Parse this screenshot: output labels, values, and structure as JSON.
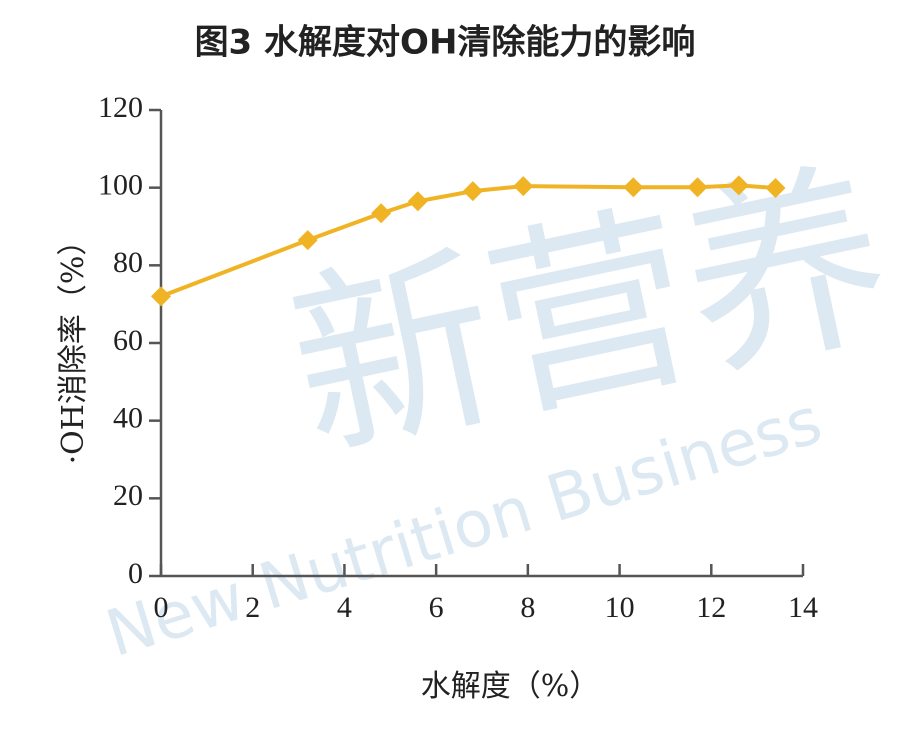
{
  "chart_data": {
    "type": "line",
    "title": "图3 水解度对OH清除能力的影响",
    "x_label": "水解度（%）",
    "y_label": "·OH消除率（%）",
    "watermark": [
      "新营养",
      "New Nutrition Business"
    ],
    "x": [
      0.0,
      3.2,
      4.8,
      5.6,
      6.8,
      7.9,
      10.3,
      11.7,
      12.6,
      13.4
    ],
    "series": [
      {
        "name": "·OH消除率",
        "color": "#f0b323",
        "values": [
          72,
          86.5,
          93.4,
          96.5,
          99.1,
          100.4,
          100.1,
          100.1,
          100.6,
          99.9
        ]
      }
    ],
    "xlim": [
      0,
      14
    ],
    "xticks": [
      0,
      2,
      4,
      6,
      8,
      10,
      12,
      14
    ],
    "ylim": [
      0,
      120
    ],
    "yticks": [
      0,
      20,
      40,
      60,
      80,
      100,
      120
    ],
    "grid": false
  }
}
